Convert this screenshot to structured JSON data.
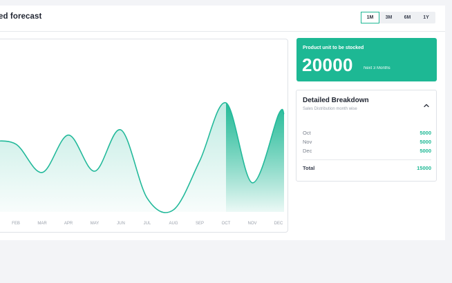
{
  "header": {
    "title": "ed forecast",
    "ranges": [
      "1M",
      "3M",
      "6M",
      "1Y"
    ],
    "active_range": "1M"
  },
  "stock": {
    "label": "Product unit to be stocked",
    "value": "20000",
    "sub": "Next 3 Months"
  },
  "breakdown": {
    "title": "Detailed Breakdown",
    "subtitle": "Sales Distribution month wise",
    "rows": [
      {
        "month": "Oct",
        "value": "5000"
      },
      {
        "month": "Nov",
        "value": "5000"
      },
      {
        "month": "Dec",
        "value": "5000"
      }
    ],
    "total_label": "Total",
    "total_value": "15000"
  },
  "colors": {
    "accent": "#1db894",
    "curve": "#22b99a"
  },
  "chart_data": {
    "type": "area",
    "categories": [
      "FEB",
      "MAR",
      "APR",
      "MAY",
      "JUN",
      "JUL",
      "AUG",
      "SEP",
      "OCT",
      "NOV",
      "DEC"
    ],
    "values": [
      5.1,
      2.9,
      5.8,
      3.0,
      6.2,
      0.9,
      0,
      3.8,
      8.3,
      2.1,
      7.4
    ],
    "forecast_start": "OCT",
    "grid": false,
    "legend": "none"
  }
}
